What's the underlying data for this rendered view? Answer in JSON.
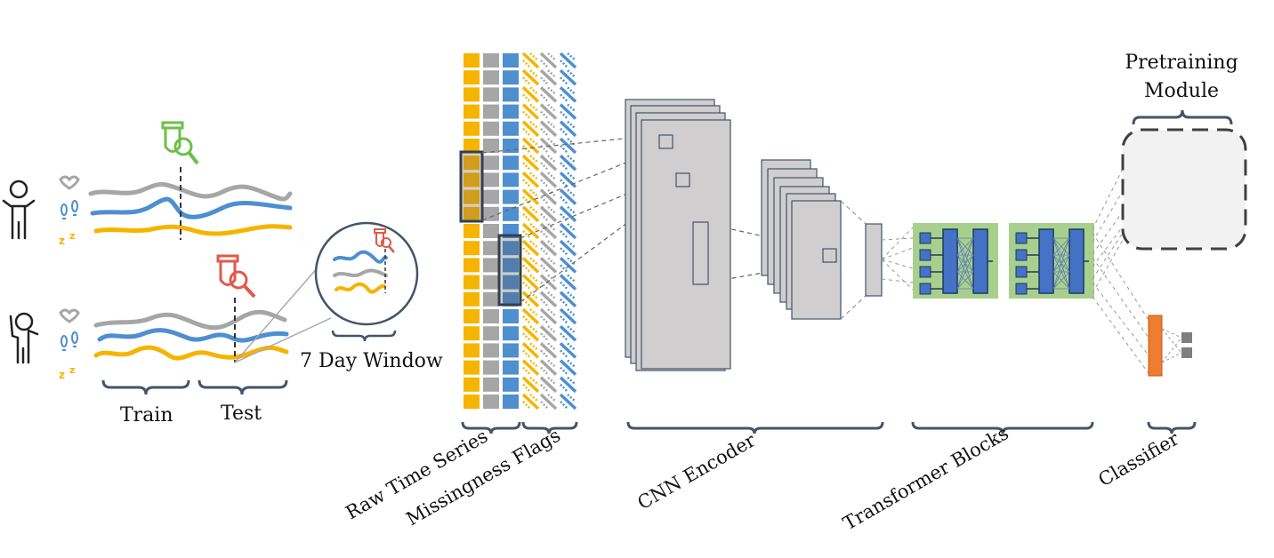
{
  "colors": {
    "yellow": "#f5b400",
    "gray": "#a6a6a6",
    "blue": "#4e8fd0",
    "green": "#6cbf4a",
    "red": "#e05a4a",
    "brace": "#44546a",
    "box": "#d0cece",
    "transformer_bg": "#a8d08d",
    "transformer_block": "#4472c4",
    "classifier": "#ed7d31",
    "pretrain_bg": "#f2f2f2"
  },
  "labels": {
    "train": "Train",
    "test": "Test",
    "window": "7 Day Window",
    "raw": "Raw Time Series",
    "missing": "Missingness Flags",
    "cnn": "CNN Encoder",
    "transformer": "Transformer Blocks",
    "classifier": "Classifier",
    "pretrain_line1": "Pretraining",
    "pretrain_line2": "Module"
  }
}
